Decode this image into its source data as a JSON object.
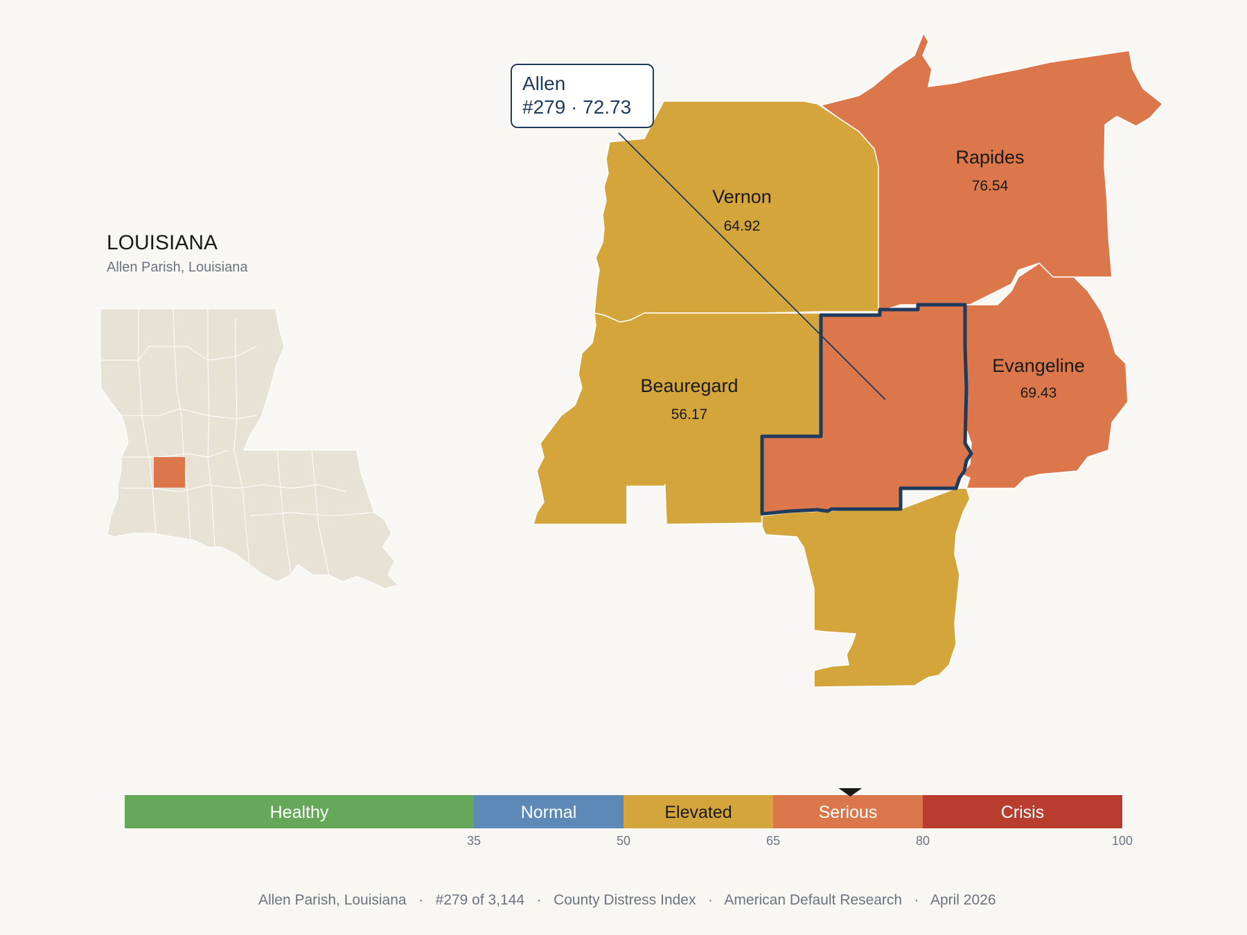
{
  "state": {
    "title": "LOUISIANA",
    "subtitle": "Allen Parish, Louisiana"
  },
  "callout": {
    "name": "Allen",
    "detail": "#279 · 72.73"
  },
  "parishes": [
    {
      "id": "vernon",
      "name": "Vernon",
      "value": "64.92",
      "color": "#d4a53b"
    },
    {
      "id": "rapides",
      "name": "Rapides",
      "value": "76.54",
      "color": "#dc774b"
    },
    {
      "id": "beauregard",
      "name": "Beauregard",
      "value": "56.17",
      "color": "#d4a53b"
    },
    {
      "id": "evangeline",
      "name": "Evangeline",
      "value": "69.43",
      "color": "#dc774b"
    },
    {
      "id": "allen",
      "name": "Allen",
      "value": "72.73",
      "color": "#dc774b",
      "highlighted": true
    },
    {
      "id": "jefferson-davis",
      "name": "",
      "value": "",
      "color": "#d4a53b"
    }
  ],
  "legend": {
    "bands": [
      {
        "label": "Healthy",
        "from": 0,
        "to": 35,
        "color": "#66a85a"
      },
      {
        "label": "Normal",
        "from": 35,
        "to": 50,
        "color": "#5d89b8"
      },
      {
        "label": "Elevated",
        "from": 50,
        "to": 65,
        "color": "#d4a53b"
      },
      {
        "label": "Serious",
        "from": 65,
        "to": 80,
        "color": "#dc774b"
      },
      {
        "label": "Crisis",
        "from": 80,
        "to": 100,
        "color": "#b93d2f"
      }
    ],
    "ticks": [
      "35",
      "50",
      "65",
      "80",
      "100"
    ],
    "marker_value": 72.73
  },
  "footer": {
    "items": [
      "Allen Parish, Louisiana",
      "#279 of 3,144",
      "County Distress Index",
      "American Default Research",
      "April 2026"
    ],
    "separator": "·"
  },
  "colors": {
    "background": "#f9f7f3",
    "inset_land": "#e8e2d6",
    "outline": "#1e3a5c",
    "text_dark": "#1a1a1a",
    "text_muted": "#6b7280"
  }
}
